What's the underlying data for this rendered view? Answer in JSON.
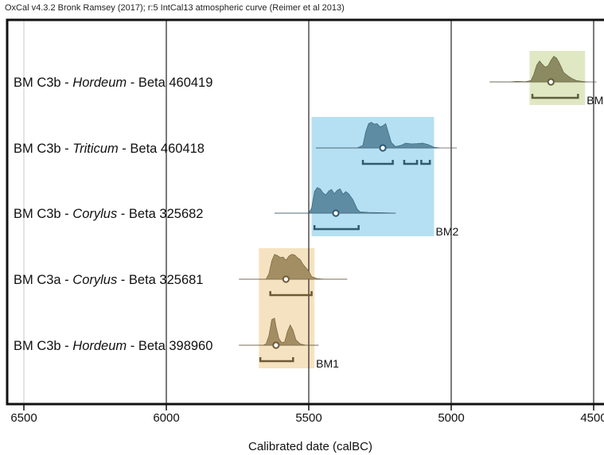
{
  "header": "OxCal v4.3.2 Bronk Ramsey (2017); r:5 IntCal13 atmospheric curve (Reimer et al 2013)",
  "chart_data": {
    "type": "ridgeline",
    "xlabel": "Calibrated date (calBC)",
    "xlim": [
      6560,
      4490
    ],
    "x_reversed": true,
    "xticks": [
      6500,
      6000,
      5500,
      5000,
      4500
    ],
    "grid": true,
    "groups": [
      {
        "name": "BM1",
        "from": 5675,
        "to": 5480,
        "color": "#f5e2c0"
      },
      {
        "name": "BM2",
        "from": 5490,
        "to": 5060,
        "color": "#b5e0f3"
      },
      {
        "name": "BM",
        "from": 4725,
        "to": 4530,
        "color": "#dfe8c3"
      }
    ],
    "samples": [
      {
        "prefix": "BM C3b - ",
        "taxon": "Hordeum",
        "suffix": " - Beta 460419",
        "group": "BM",
        "color": "#8b8a60",
        "edge": "#5f5e3a",
        "line": [
          4865,
          4490
        ],
        "density": [
          [
            4865,
            0
          ],
          [
            4800,
            0
          ],
          [
            4770,
            0.02
          ],
          [
            4740,
            0.01
          ],
          [
            4720,
            0.05
          ],
          [
            4710,
            0.28
          ],
          [
            4700,
            0.62
          ],
          [
            4690,
            0.78
          ],
          [
            4680,
            0.65
          ],
          [
            4670,
            0.55
          ],
          [
            4660,
            0.6
          ],
          [
            4650,
            0.8
          ],
          [
            4640,
            0.95
          ],
          [
            4630,
            0.88
          ],
          [
            4620,
            0.7
          ],
          [
            4605,
            0.35
          ],
          [
            4590,
            0.22
          ],
          [
            4575,
            0.12
          ],
          [
            4560,
            0.05
          ],
          [
            4540,
            0.02
          ],
          [
            4520,
            0
          ]
        ],
        "mean": 4650,
        "ranges": [
          [
            4715,
            4555
          ]
        ]
      },
      {
        "prefix": "BM C3b - ",
        "taxon": "Triticum",
        "suffix": " - Beta 460418",
        "group": "BM2",
        "color": "#5e8ca3",
        "edge": "#2f5a70",
        "line": [
          5475,
          4980
        ],
        "density": [
          [
            5475,
            0
          ],
          [
            5330,
            0
          ],
          [
            5310,
            0.1
          ],
          [
            5300,
            0.6
          ],
          [
            5290,
            0.9
          ],
          [
            5280,
            0.95
          ],
          [
            5270,
            0.88
          ],
          [
            5260,
            0.9
          ],
          [
            5250,
            0.78
          ],
          [
            5240,
            0.82
          ],
          [
            5230,
            0.9
          ],
          [
            5220,
            0.55
          ],
          [
            5210,
            0.2
          ],
          [
            5195,
            0.05
          ],
          [
            5175,
            0.1
          ],
          [
            5160,
            0.18
          ],
          [
            5140,
            0.15
          ],
          [
            5120,
            0.16
          ],
          [
            5100,
            0.18
          ],
          [
            5080,
            0.12
          ],
          [
            5060,
            0.03
          ],
          [
            5040,
            0
          ]
        ],
        "mean": 5240,
        "ranges": [
          [
            5310,
            5205
          ],
          [
            5165,
            5120
          ],
          [
            5105,
            5075
          ]
        ]
      },
      {
        "prefix": "BM C3b - ",
        "taxon": "Corylus",
        "suffix": " - Beta 325682",
        "group": "BM2",
        "color": "#5e8ca3",
        "edge": "#2f5a70",
        "line": [
          5620,
          5195
        ],
        "density": [
          [
            5620,
            0
          ],
          [
            5500,
            0
          ],
          [
            5490,
            0.2
          ],
          [
            5480,
            0.8
          ],
          [
            5470,
            0.95
          ],
          [
            5460,
            0.9
          ],
          [
            5450,
            0.75
          ],
          [
            5440,
            0.68
          ],
          [
            5430,
            0.82
          ],
          [
            5420,
            0.88
          ],
          [
            5410,
            0.72
          ],
          [
            5400,
            0.85
          ],
          [
            5390,
            0.9
          ],
          [
            5380,
            0.7
          ],
          [
            5370,
            0.8
          ],
          [
            5360,
            0.72
          ],
          [
            5345,
            0.5
          ],
          [
            5330,
            0.15
          ],
          [
            5320,
            0.05
          ],
          [
            5290,
            0.03
          ],
          [
            5260,
            0.02
          ],
          [
            5220,
            0.01
          ],
          [
            5195,
            0
          ]
        ],
        "mean": 5405,
        "ranges": [
          [
            5480,
            5325
          ]
        ]
      },
      {
        "prefix": "BM C3a - ",
        "taxon": "Corylus",
        "suffix": " - Beta 325681",
        "group": "BM1",
        "color": "#a38e63",
        "edge": "#6e5a35",
        "line": [
          5745,
          5365
        ],
        "density": [
          [
            5745,
            0
          ],
          [
            5650,
            0
          ],
          [
            5640,
            0.2
          ],
          [
            5630,
            0.68
          ],
          [
            5620,
            0.92
          ],
          [
            5610,
            0.88
          ],
          [
            5600,
            0.8
          ],
          [
            5590,
            0.82
          ],
          [
            5580,
            0.7
          ],
          [
            5570,
            0.85
          ],
          [
            5560,
            0.92
          ],
          [
            5550,
            0.9
          ],
          [
            5540,
            0.8
          ],
          [
            5530,
            0.72
          ],
          [
            5520,
            0.55
          ],
          [
            5500,
            0.3
          ],
          [
            5490,
            0.1
          ],
          [
            5470,
            0.02
          ],
          [
            5440,
            0
          ],
          [
            5365,
            0
          ]
        ],
        "mean": 5580,
        "ranges": [
          [
            5635,
            5490
          ]
        ]
      },
      {
        "prefix": "BM C3b - ",
        "taxon": "Hordeum",
        "suffix": " - Beta 398960",
        "group": "BM1",
        "color": "#a38e63",
        "edge": "#6e5a35",
        "line": [
          5745,
          5465
        ],
        "density": [
          [
            5745,
            0
          ],
          [
            5660,
            0
          ],
          [
            5650,
            0.05
          ],
          [
            5640,
            0.35
          ],
          [
            5630,
            0.95
          ],
          [
            5620,
            1.0
          ],
          [
            5615,
            0.7
          ],
          [
            5605,
            0.25
          ],
          [
            5595,
            0.1
          ],
          [
            5585,
            0.12
          ],
          [
            5575,
            0.5
          ],
          [
            5565,
            0.75
          ],
          [
            5555,
            0.55
          ],
          [
            5545,
            0.2
          ],
          [
            5530,
            0.05
          ],
          [
            5510,
            0
          ],
          [
            5465,
            0
          ]
        ],
        "mean": 5615,
        "ranges": [
          [
            5670,
            5555
          ]
        ]
      }
    ]
  }
}
